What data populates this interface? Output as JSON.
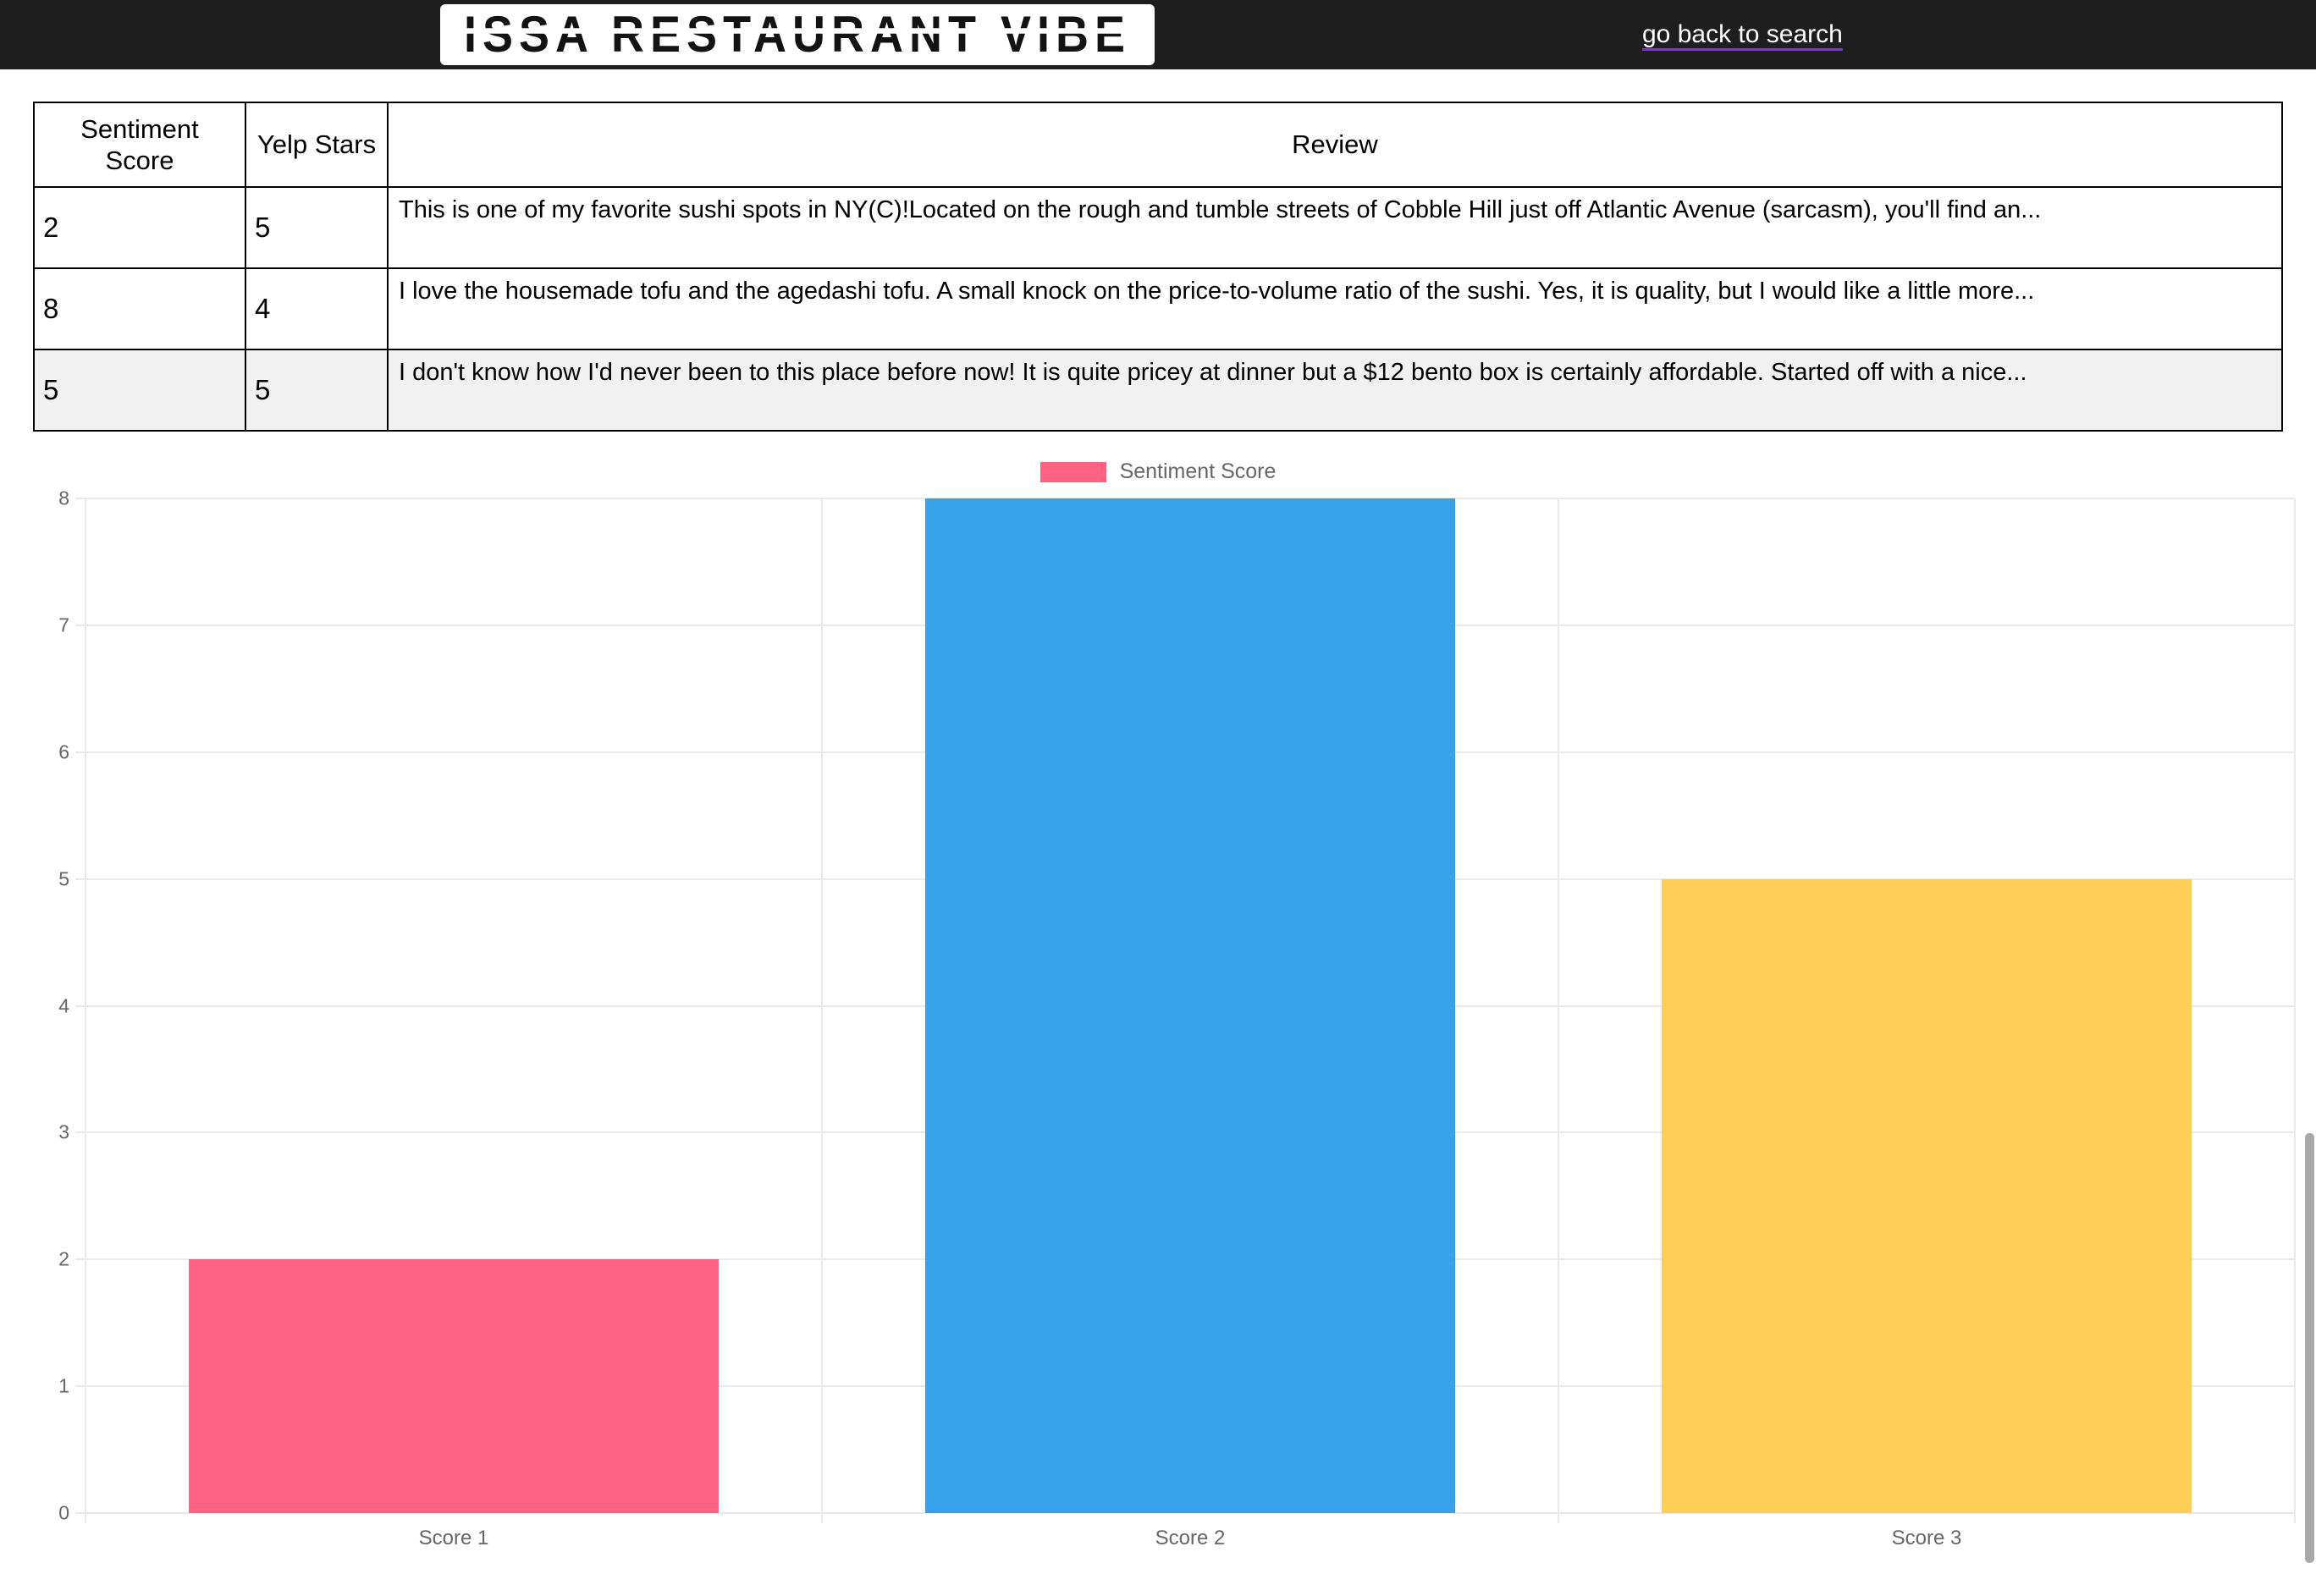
{
  "header": {
    "title": "ISSA RESTAURANT VIBE",
    "back_link": "go back to search"
  },
  "table": {
    "columns": [
      "Sentiment Score",
      "Yelp Stars",
      "Review"
    ],
    "rows": [
      {
        "sentiment": "2",
        "stars": "5",
        "review": "This is one of my favorite sushi spots in NY(C)!Located on the rough and tumble streets of Cobble Hill just off Atlantic Avenue (sarcasm), you'll find an..."
      },
      {
        "sentiment": "8",
        "stars": "4",
        "review": "I love the housemade tofu and the agedashi tofu. A small knock on the price-to-volume ratio of the sushi. Yes, it is quality, but I would like a little more..."
      },
      {
        "sentiment": "5",
        "stars": "5",
        "review": "I don't know how I'd never been to this place before now! It is quite pricey at dinner but a $12 bento box is certainly affordable. Started off with a nice..."
      }
    ]
  },
  "chart_data": {
    "type": "bar",
    "title": "",
    "series_label": "Sentiment Score",
    "categories": [
      "Score 1",
      "Score 2",
      "Score 3"
    ],
    "values": [
      2,
      8,
      5
    ],
    "colors": [
      "#ff6384",
      "#36a2eb",
      "#ffce56"
    ],
    "ylim": [
      0,
      8
    ],
    "yticks": [
      0,
      1,
      2,
      3,
      4,
      5,
      6,
      7,
      8
    ],
    "legend_position": "top",
    "grid": true
  }
}
